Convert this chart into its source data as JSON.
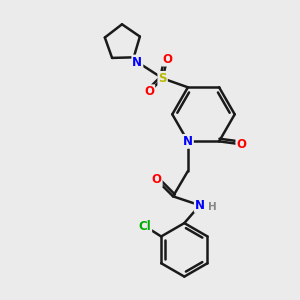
{
  "bg_color": "#ebebeb",
  "bond_color": "#1a1a1a",
  "atom_colors": {
    "N": "#0000ff",
    "O": "#ff0000",
    "S": "#b8b800",
    "Cl": "#00aa00",
    "H": "#888888"
  },
  "bond_width": 1.8,
  "figsize": [
    3.0,
    3.0
  ],
  "dpi": 100
}
